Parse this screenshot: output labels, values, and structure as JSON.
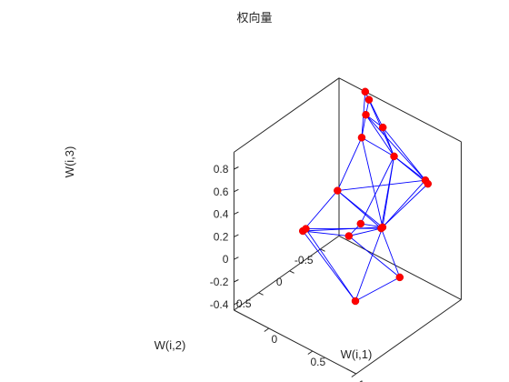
{
  "chart_data": {
    "type": "scatter3d",
    "title": "权向量",
    "xlabel": "W(i,1)",
    "ylabel": "W(i,2)",
    "zlabel": "W(i,3)",
    "xticks": [
      "0",
      "0.5",
      "1"
    ],
    "yticks": [
      "-0.5",
      "0",
      "0.5"
    ],
    "zticks": [
      "-0.4",
      "-0.2",
      "0",
      "0.2",
      "0.4",
      "0.6",
      "0.8"
    ],
    "points": [
      {
        "id": "A",
        "x": -0.1,
        "y": -0.8,
        "z": 0.95
      },
      {
        "id": "B",
        "x": 0.0,
        "y": -0.72,
        "z": 0.95
      },
      {
        "id": "C",
        "x": 0.12,
        "y": -0.5,
        "z": 0.95
      },
      {
        "id": "D",
        "x": 0.35,
        "y": -0.45,
        "z": 0.95
      },
      {
        "id": "E",
        "x": 0.2,
        "y": -0.32,
        "z": 0.85
      },
      {
        "id": "F",
        "x": 0.62,
        "y": -0.25,
        "z": 0.88
      },
      {
        "id": "G",
        "x": 1.05,
        "y": -0.15,
        "z": 0.88
      },
      {
        "id": "H",
        "x": 1.1,
        "y": -0.12,
        "z": 0.88
      },
      {
        "id": "I",
        "x": 0.22,
        "y": 0.1,
        "z": 0.55
      },
      {
        "id": "J",
        "x": 0.65,
        "y": 0.0,
        "z": 0.35
      },
      {
        "id": "K",
        "x": 0.68,
        "y": 0.02,
        "z": 0.38
      },
      {
        "id": "L",
        "x": 0.45,
        "y": 0.05,
        "z": 0.33
      },
      {
        "id": "M",
        "x": 0.35,
        "y": 0.1,
        "z": 0.2
      },
      {
        "id": "N",
        "x": 0.0,
        "y": 0.35,
        "z": 0.2
      },
      {
        "id": "O",
        "x": 0.02,
        "y": 0.33,
        "z": 0.22
      },
      {
        "id": "P",
        "x": 0.65,
        "y": -0.3,
        "z": -0.2
      },
      {
        "id": "Q",
        "x": 0.0,
        "y": -0.5,
        "z": -0.75
      }
    ],
    "edges": [
      [
        "A",
        "B"
      ],
      [
        "B",
        "C"
      ],
      [
        "C",
        "D"
      ],
      [
        "D",
        "F"
      ],
      [
        "F",
        "G"
      ],
      [
        "G",
        "H"
      ],
      [
        "A",
        "E"
      ],
      [
        "E",
        "F"
      ],
      [
        "A",
        "D"
      ],
      [
        "C",
        "E"
      ],
      [
        "C",
        "F"
      ],
      [
        "A",
        "F"
      ],
      [
        "C",
        "G"
      ],
      [
        "F",
        "H"
      ],
      [
        "D",
        "G"
      ],
      [
        "E",
        "I"
      ],
      [
        "I",
        "J"
      ],
      [
        "I",
        "G"
      ],
      [
        "F",
        "J"
      ],
      [
        "F",
        "K"
      ],
      [
        "E",
        "K"
      ],
      [
        "I",
        "K"
      ],
      [
        "J",
        "K"
      ],
      [
        "G",
        "K"
      ],
      [
        "H",
        "J"
      ],
      [
        "F",
        "L"
      ],
      [
        "L",
        "K"
      ],
      [
        "L",
        "M"
      ],
      [
        "M",
        "J"
      ],
      [
        "M",
        "N"
      ],
      [
        "N",
        "O"
      ],
      [
        "O",
        "J"
      ],
      [
        "N",
        "K"
      ],
      [
        "N",
        "I"
      ],
      [
        "O",
        "Q"
      ],
      [
        "N",
        "Q"
      ],
      [
        "Q",
        "P"
      ],
      [
        "P",
        "J"
      ],
      [
        "Q",
        "K"
      ],
      [
        "P",
        "M"
      ]
    ]
  }
}
